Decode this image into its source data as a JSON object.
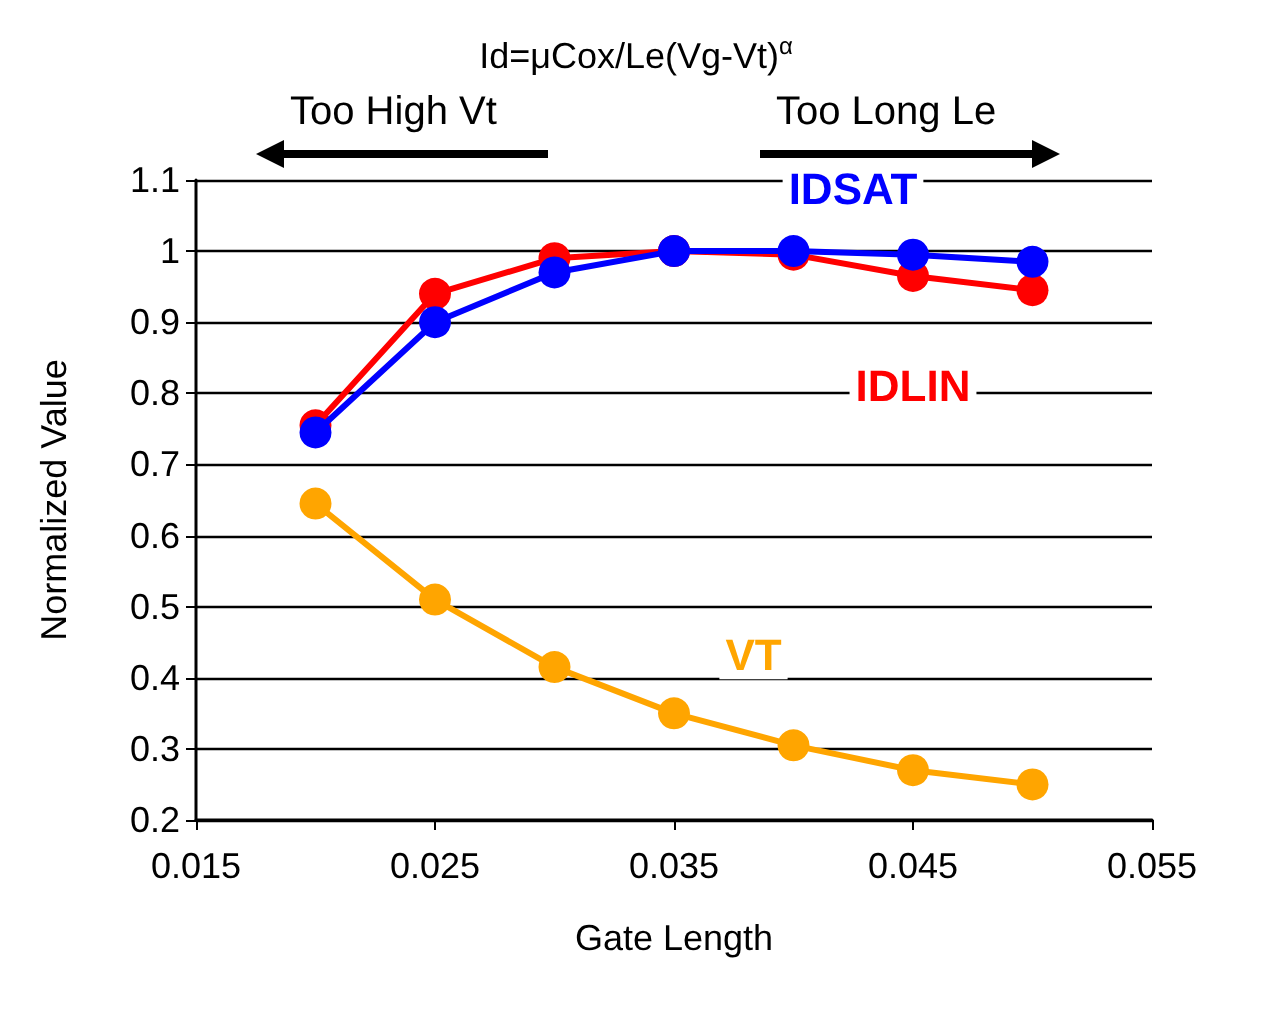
{
  "chart_data": {
    "type": "line",
    "title": "Id=μCox/Le(Vg-Vt)$^{α}$",
    "xlabel": "Gate Length",
    "ylabel": "Normalized Value",
    "annotations": [
      "Too High Vt",
      "Too Long Le"
    ],
    "x": [
      0.02,
      0.025,
      0.03,
      0.035,
      0.04,
      0.045,
      0.05
    ],
    "series": [
      {
        "name": "IDLIN",
        "color": "#ff0000",
        "values": [
          0.755,
          0.94,
          0.99,
          1.0,
          0.995,
          0.965,
          0.945
        ]
      },
      {
        "name": "IDSAT",
        "color": "#0000ff",
        "values": [
          0.745,
          0.9,
          0.97,
          1.0,
          1.0,
          0.995,
          0.985
        ]
      },
      {
        "name": "VT",
        "color": "#ffa500",
        "values": [
          0.645,
          0.51,
          0.415,
          0.35,
          0.305,
          0.27,
          0.25
        ]
      }
    ],
    "xlim": [
      0.015,
      0.055
    ],
    "xticks": [
      0.015,
      0.025,
      0.035,
      0.045,
      0.055
    ],
    "ylim": [
      0.2,
      1.1
    ],
    "yticks": [
      0.2,
      0.3,
      0.4,
      0.5,
      0.6,
      0.7,
      0.8,
      0.9,
      1,
      1.1
    ],
    "grid": "y",
    "legend": false,
    "marker": "circle",
    "line_style": "solid"
  }
}
